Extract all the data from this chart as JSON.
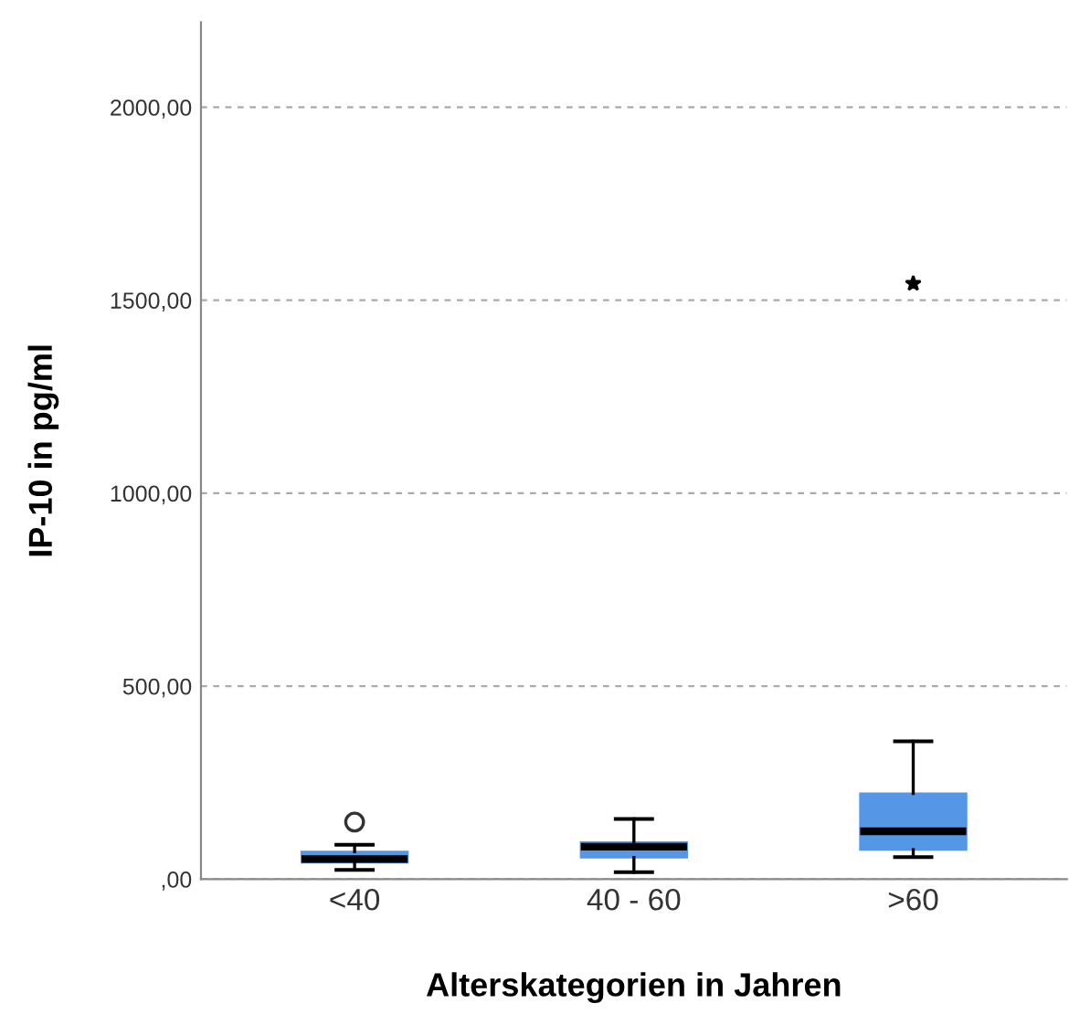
{
  "chart_data": {
    "type": "box",
    "xlabel": "Alterskategorien in Jahren",
    "ylabel": "IP-10 in pg/ml",
    "categories": [
      "<40",
      "40 - 60",
      ">60"
    ],
    "series": [
      {
        "color": "#5596e6",
        "boxes": [
          {
            "low": 24,
            "q1": 43,
            "median": 52,
            "q3": 71,
            "high": 89,
            "outliers": [
              148
            ]
          },
          {
            "low": 18,
            "q1": 56,
            "median": 84,
            "q3": 95,
            "high": 156
          },
          {
            "low": 57,
            "q1": 76,
            "median": 124,
            "q3": 222,
            "high": 357,
            "outliers": [
              1543
            ]
          }
        ]
      }
    ],
    "ylim": [
      0,
      2220
    ],
    "yticks": [
      {
        "value": 0,
        "label": ",00"
      },
      {
        "value": 500,
        "label": "500,00"
      },
      {
        "value": 1000,
        "label": "1000,00"
      },
      {
        "value": 1500,
        "label": "1500,00"
      },
      {
        "value": 2000,
        "label": "2000,00"
      }
    ],
    "grid": "y"
  }
}
